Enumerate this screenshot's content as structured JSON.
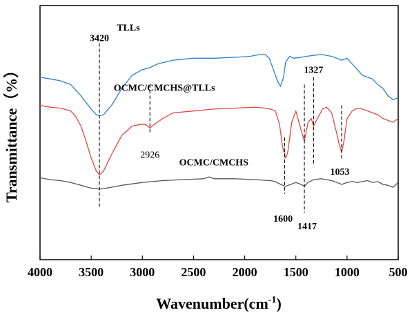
{
  "chart_data": {
    "type": "line",
    "xlabel": "Wavenumber(cm",
    "xlabel_superscript": "-1",
    "xlabel_close": ")",
    "ylabel": "Transmittance（%）",
    "xlim": [
      4000,
      500
    ],
    "x_reversed": true,
    "x_ticks": [
      4000,
      3500,
      3000,
      2500,
      2000,
      1500,
      1000,
      500
    ],
    "y_ticks_shown": false,
    "grid": false,
    "legend": "none",
    "series": [
      {
        "name": "TLLs",
        "color": "#2a7fd4",
        "x": [
          4000,
          3900,
          3800,
          3700,
          3600,
          3500,
          3450,
          3420,
          3380,
          3300,
          3200,
          3100,
          3000,
          2926,
          2850,
          2700,
          2500,
          2300,
          2100,
          1950,
          1850,
          1800,
          1760,
          1720,
          1680,
          1650,
          1620,
          1600,
          1560,
          1520,
          1450,
          1400,
          1327,
          1250,
          1150,
          1100,
          1053,
          1000,
          950,
          900,
          850,
          800,
          750,
          700,
          650,
          600,
          550,
          500
        ],
        "y": [
          0.62,
          0.61,
          0.6,
          0.58,
          0.52,
          0.45,
          0.42,
          0.415,
          0.42,
          0.47,
          0.56,
          0.63,
          0.66,
          0.67,
          0.69,
          0.71,
          0.72,
          0.72,
          0.725,
          0.73,
          0.74,
          0.74,
          0.72,
          0.66,
          0.6,
          0.57,
          0.62,
          0.7,
          0.73,
          0.72,
          0.725,
          0.73,
          0.735,
          0.74,
          0.73,
          0.72,
          0.71,
          0.72,
          0.69,
          0.66,
          0.63,
          0.62,
          0.61,
          0.58,
          0.56,
          0.52,
          0.5,
          0.51
        ]
      },
      {
        "name": "OCMC/CMCHS@TLLs",
        "color": "#e04545",
        "x": [
          4000,
          3900,
          3800,
          3700,
          3650,
          3600,
          3550,
          3500,
          3450,
          3420,
          3380,
          3300,
          3200,
          3100,
          3000,
          2960,
          2926,
          2880,
          2800,
          2700,
          2500,
          2300,
          2100,
          1900,
          1800,
          1750,
          1700,
          1660,
          1630,
          1600,
          1580,
          1540,
          1500,
          1460,
          1417,
          1380,
          1350,
          1327,
          1290,
          1240,
          1200,
          1150,
          1100,
          1080,
          1053,
          1030,
          1000,
          950,
          900,
          850,
          800,
          750,
          700,
          650,
          600,
          550,
          500
        ],
        "y": [
          0.47,
          0.46,
          0.455,
          0.44,
          0.41,
          0.36,
          0.28,
          0.19,
          0.12,
          0.1,
          0.12,
          0.21,
          0.31,
          0.36,
          0.37,
          0.365,
          0.35,
          0.37,
          0.4,
          0.43,
          0.44,
          0.45,
          0.455,
          0.46,
          0.455,
          0.45,
          0.44,
          0.37,
          0.25,
          0.19,
          0.22,
          0.38,
          0.44,
          0.36,
          0.28,
          0.38,
          0.4,
          0.36,
          0.4,
          0.45,
          0.46,
          0.43,
          0.32,
          0.27,
          0.22,
          0.28,
          0.4,
          0.44,
          0.455,
          0.45,
          0.44,
          0.43,
          0.42,
          0.4,
          0.39,
          0.38,
          0.4
        ]
      },
      {
        "name": "OCMC/CMCHS",
        "color": "#555555",
        "x": [
          4000,
          3900,
          3800,
          3700,
          3600,
          3500,
          3420,
          3350,
          3200,
          3000,
          2800,
          2600,
          2400,
          2350,
          2300,
          2100,
          1900,
          1750,
          1700,
          1650,
          1600,
          1550,
          1500,
          1450,
          1417,
          1380,
          1327,
          1250,
          1150,
          1100,
          1053,
          1000,
          950,
          900,
          850,
          800,
          750,
          700,
          650,
          600,
          550,
          500
        ],
        "y": [
          0.085,
          0.075,
          0.07,
          0.06,
          0.045,
          0.03,
          0.025,
          0.03,
          0.045,
          0.06,
          0.07,
          0.075,
          0.08,
          0.09,
          0.08,
          0.08,
          0.075,
          0.07,
          0.065,
          0.05,
          0.04,
          0.05,
          0.06,
          0.05,
          0.04,
          0.06,
          0.075,
          0.08,
          0.07,
          0.06,
          0.05,
          0.06,
          0.065,
          0.06,
          0.065,
          0.07,
          0.06,
          0.065,
          0.05,
          0.045,
          0.035,
          0.06
        ]
      }
    ],
    "series_labels": [
      {
        "series": "TLLs",
        "text": "TLLs",
        "x": 3250,
        "y": 0.885
      },
      {
        "series": "OCMC/CMCHS@TLLs",
        "text": "OCMC/CMCHS@TLLs",
        "x": 3280,
        "y": 0.565
      },
      {
        "series": "OCMC/CMCHS",
        "text": "OCMC/CMCHS",
        "x": 2640,
        "y": 0.17
      }
    ],
    "annotations": [
      {
        "label": "3420",
        "x": 3420,
        "line_y": [
          0.8,
          -0.07
        ],
        "label_pos": [
          3420,
          0.83
        ],
        "style": "bold"
      },
      {
        "label": "2926",
        "x": 2926,
        "line_y": [
          0.58,
          0.32
        ],
        "label_pos": [
          2926,
          0.21
        ],
        "style": "normal"
      },
      {
        "label": "1600",
        "x": 1610,
        "line_y": [
          0.3,
          0.0
        ],
        "label_pos": [
          1625,
          -0.13
        ],
        "style": "bold"
      },
      {
        "label": "1417",
        "x": 1417,
        "line_y": [
          0.58,
          -0.1
        ],
        "label_pos": [
          1390,
          -0.17
        ],
        "style": "bold"
      },
      {
        "label": "1327",
        "x": 1327,
        "line_y": [
          0.62,
          0.16
        ],
        "label_pos": [
          1327,
          0.66
        ],
        "style": "bold"
      },
      {
        "label": "1053",
        "x": 1053,
        "line_y": [
          0.47,
          0.18
        ],
        "label_pos": [
          1070,
          0.12
        ],
        "style": "bold"
      }
    ]
  }
}
